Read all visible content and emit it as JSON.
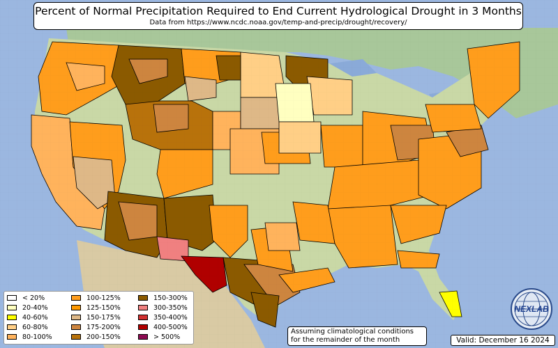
{
  "header": {
    "title": "Percent of Normal Precipitation Required to End Current Hydrological Drought in 3 Months",
    "subtitle": "Data from https://www.ncdc.noaa.gov/temp-and-precip/drought/recovery/"
  },
  "legend": {
    "items": [
      {
        "label": "< 20%",
        "color": "#ffffff"
      },
      {
        "label": "20-40%",
        "color": "#ffffc0"
      },
      {
        "label": "40-60%",
        "color": "#ffff00"
      },
      {
        "label": "60-80%",
        "color": "#ffcf86"
      },
      {
        "label": "80-100%",
        "color": "#ffb35c"
      },
      {
        "label": "100-125%",
        "color": "#ff9d1c"
      },
      {
        "label": "125-150%",
        "color": "#ff9900"
      },
      {
        "label": "150-175%",
        "color": "#deb887"
      },
      {
        "label": "175-200%",
        "color": "#cd853f"
      },
      {
        "label": "200-150%",
        "color": "#b8720b"
      },
      {
        "label": "150-300%",
        "color": "#8b5a00"
      },
      {
        "label": "300-350%",
        "color": "#f08080"
      },
      {
        "label": "350-400%",
        "color": "#d03030"
      },
      {
        "label": "400-500%",
        "color": "#b00000"
      },
      {
        "label": "> 500%",
        "color": "#8b0a50"
      }
    ]
  },
  "note": {
    "line1": "Assuming climatological conditions",
    "line2": "for the remainder of the month"
  },
  "valid": "Valid: December 16 2024",
  "logo": {
    "text": "NEXLAB",
    "icon": "globe-logo-icon"
  }
}
